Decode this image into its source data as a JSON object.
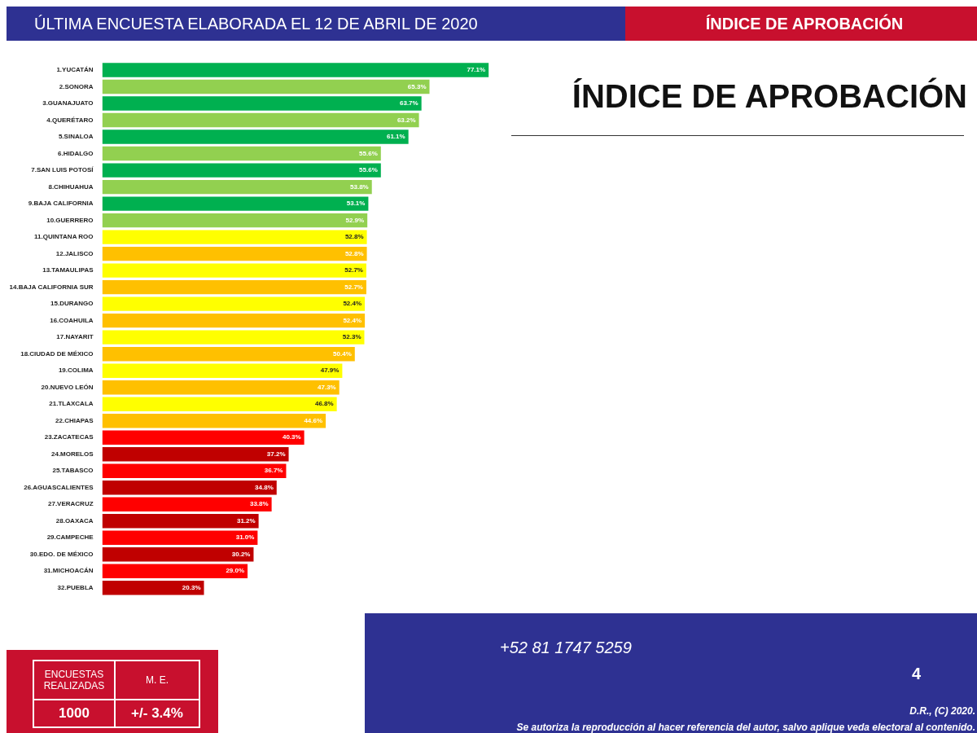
{
  "chart_data": {
    "type": "bar",
    "orientation": "horizontal",
    "title": "ÍNDICE DE APROBACIÓN",
    "tick_labels": "y",
    "categories": [
      "1.YUCATÁN",
      "2.SONORA",
      "3.GUANAJUATO",
      "4.QUERÉTARO",
      "5.SINALOA",
      "6.HIDALGO",
      "7.SAN LUIS POTOSÍ",
      "8.CHIHUAHUA",
      "9.BAJA CALIFORNIA",
      "10.GUERRERO",
      "11.QUINTANA ROO",
      "12.JALISCO",
      "13.TAMAULIPAS",
      "14.BAJA CALIFORNIA SUR",
      "15.DURANGO",
      "16.COAHUILA",
      "17.NAYARIT",
      "18.CIUDAD DE MÉXICO",
      "19.COLIMA",
      "20.NUEVO LEÓN",
      "21.TLAXCALA",
      "22.CHIAPAS",
      "23.ZACATECAS",
      "24.MORELOS",
      "25.TABASCO",
      "26.AGUASCALIENTES",
      "27.VERACRUZ",
      "28.OAXACA",
      "29.CAMPECHE",
      "30.EDO. DE MÉXICO",
      "31.MICHOACÁN",
      "32.PUEBLA"
    ],
    "values": [
      77.1,
      65.3,
      63.7,
      63.2,
      61.1,
      55.6,
      55.6,
      53.8,
      53.1,
      52.9,
      52.8,
      52.8,
      52.7,
      52.7,
      52.4,
      52.4,
      52.3,
      50.4,
      47.9,
      47.3,
      46.8,
      44.6,
      40.3,
      37.2,
      36.7,
      34.8,
      33.8,
      31.2,
      31.0,
      30.2,
      29.0,
      20.3
    ],
    "value_labels": [
      "77.1%",
      "65.3%",
      "63.7%",
      "63.2%",
      "61.1%",
      "55.6%",
      "55.6%",
      "53.8%",
      "53.1%",
      "52.9%",
      "52.8%",
      "52.8%",
      "52.7%",
      "52.7%",
      "52.4%",
      "52.4%",
      "52.3%",
      "50.4%",
      "47.9%",
      "47.3%",
      "46.8%",
      "44.6%",
      "40.3%",
      "37.2%",
      "36.7%",
      "34.8%",
      "33.8%",
      "31.2%",
      "31.0%",
      "30.2%",
      "29.0%",
      "20.3%"
    ],
    "colors": [
      "#00b050",
      "#92d050",
      "#00b050",
      "#92d050",
      "#00b050",
      "#92d050",
      "#00b050",
      "#92d050",
      "#00b050",
      "#92d050",
      "#ffff00",
      "#ffc000",
      "#ffff00",
      "#ffc000",
      "#ffff00",
      "#ffc000",
      "#ffff00",
      "#ffc000",
      "#ffff00",
      "#ffc000",
      "#ffff00",
      "#ffc000",
      "#ff0000",
      "#c00000",
      "#ff0000",
      "#c00000",
      "#ff0000",
      "#c00000",
      "#ff0000",
      "#c00000",
      "#ff0000",
      "#c00000"
    ],
    "annotations": [
      "ÚLTIMA ENCUESTA ELABORADA EL  12 DE ABRIL DE 2020",
      "ÍNDICE DE APROBACIÓN",
      "ENCUESTAS REALIZADAS",
      "M. E.",
      "1000",
      "+/- 3.4%",
      "+52   81 1747 5259",
      "4",
      "D.R., (C) 2020.",
      "Se autoriza la reproducción al hacer referencia del autor, salvo aplique veda electoral al contenido."
    ]
  }
}
